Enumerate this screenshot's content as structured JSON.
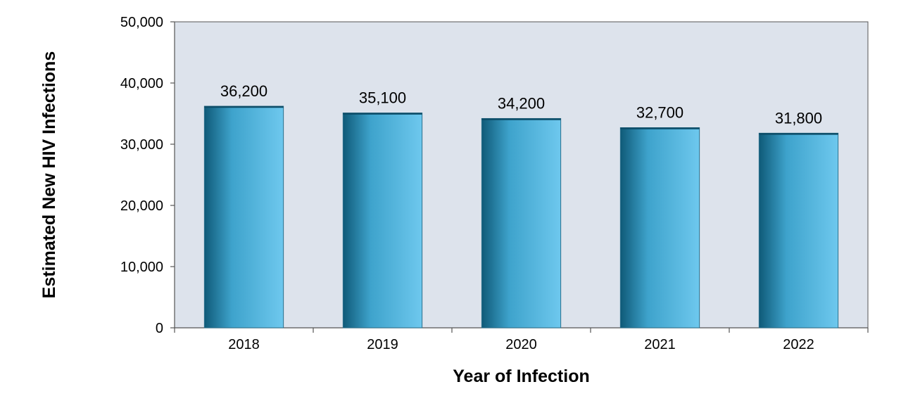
{
  "chart_data": {
    "type": "bar",
    "title": "",
    "xlabel": "Year of Infection",
    "ylabel": "Estimated New HIV Infections",
    "categories": [
      "2018",
      "2019",
      "2020",
      "2021",
      "2022"
    ],
    "values": [
      36200,
      35100,
      34200,
      32700,
      31800
    ],
    "data_labels": [
      "36,200",
      "35,100",
      "34,200",
      "32,700",
      "31,800"
    ],
    "ylim": [
      0,
      50000
    ],
    "yticks": [
      0,
      10000,
      20000,
      30000,
      40000,
      50000
    ],
    "ytick_labels": [
      "0",
      "10,000",
      "20,000",
      "30,000",
      "40,000",
      "50,000"
    ],
    "grid": false,
    "legend": "none",
    "colors": {
      "plot_background": "#dde3ec",
      "bar_dark": "#0f5a78",
      "bar_mid": "#3ea3cc",
      "bar_light": "#6ec8ee",
      "axis": "#555555"
    }
  }
}
